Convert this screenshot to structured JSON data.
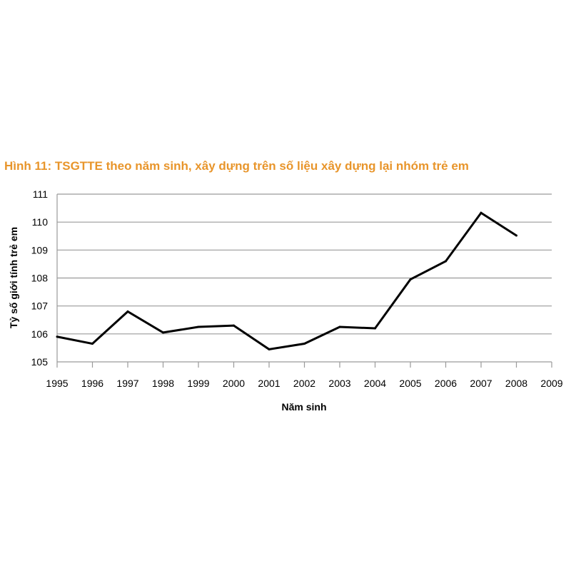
{
  "chart_data": {
    "type": "line",
    "title": "Hình 11: TSGTTE theo năm sinh, xây dựng trên số liệu xây dựng lại nhóm trẻ em",
    "xlabel": "Năm sinh",
    "ylabel": "Tỷ số giới tính trẻ em",
    "x": [
      1995,
      1996,
      1997,
      1998,
      1999,
      2000,
      2001,
      2002,
      2003,
      2004,
      2005,
      2006,
      2007,
      2008
    ],
    "x_ticks": [
      1995,
      1996,
      1997,
      1998,
      1999,
      2000,
      2001,
      2002,
      2003,
      2004,
      2005,
      2006,
      2007,
      2008,
      2009
    ],
    "y_ticks": [
      105,
      106,
      107,
      108,
      109,
      110,
      111
    ],
    "xlim": [
      1995,
      2009
    ],
    "ylim": [
      105,
      111
    ],
    "grid": "horizontal",
    "legend": "none",
    "series": [
      {
        "values": [
          105.9,
          105.65,
          106.8,
          106.05,
          106.25,
          106.3,
          105.45,
          105.65,
          106.25,
          106.2,
          107.95,
          108.6,
          110.33,
          109.52
        ]
      }
    ]
  },
  "colors": {
    "title": "#e8952b",
    "line": "#000000",
    "grid": "#9a9a9a"
  }
}
